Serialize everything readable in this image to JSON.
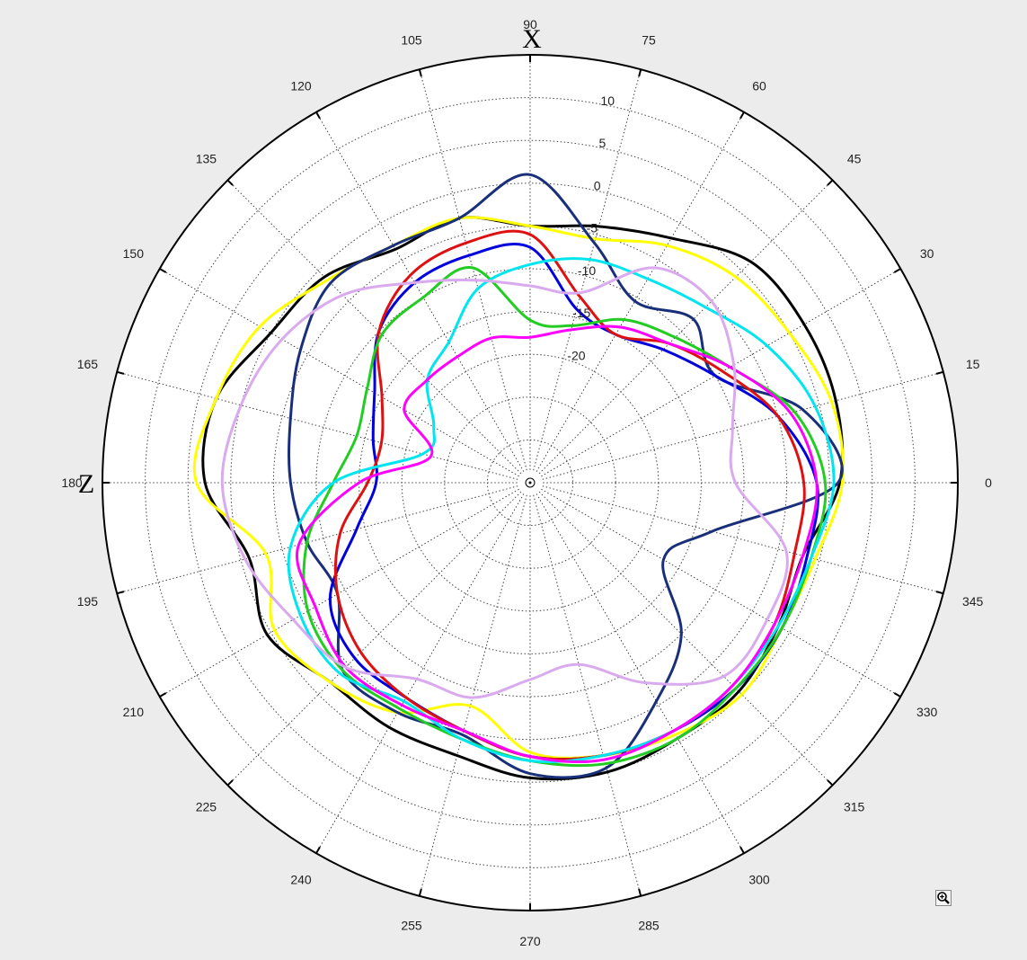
{
  "chart_data": {
    "type": "line",
    "subtype": "polar",
    "background_color": "#ececec",
    "plot_background": "#ffffff",
    "grid": true,
    "grid_style": "dotted",
    "angle_ticks": [
      "0",
      "15",
      "30",
      "45",
      "60",
      "75",
      "90",
      "105",
      "120",
      "135",
      "150",
      "165",
      "180",
      "195",
      "210",
      "225",
      "240",
      "255",
      "270",
      "285",
      "300",
      "315",
      "330",
      "345"
    ],
    "angle_tick_values": [
      0,
      15,
      30,
      45,
      60,
      75,
      90,
      105,
      120,
      135,
      150,
      165,
      180,
      195,
      210,
      225,
      240,
      255,
      270,
      285,
      300,
      315,
      330,
      345
    ],
    "angle_unit": "degrees",
    "radial_ticks": [
      "10",
      "5",
      "0",
      "-5",
      "-10",
      "-15",
      "-20"
    ],
    "radial_tick_values": [
      10,
      5,
      0,
      -5,
      -10,
      -15,
      -20
    ],
    "radial_range": [
      -35,
      15
    ],
    "axis_labels": {
      "at_90": "X",
      "at_180": "Z"
    },
    "series": [
      {
        "color": "#000000",
        "points": [
          [
            0,
            1.2
          ],
          [
            15,
            2.0
          ],
          [
            30,
            2.0
          ],
          [
            45,
            1.5
          ],
          [
            60,
            -2.0
          ],
          [
            75,
            -4.0
          ],
          [
            90,
            -5.0
          ],
          [
            105,
            -3.0
          ],
          [
            120,
            -3.5
          ],
          [
            135,
            -1.0
          ],
          [
            150,
            0.0
          ],
          [
            165,
            3.0
          ],
          [
            180,
            3.0
          ],
          [
            195,
            -1.0
          ],
          [
            210,
            0.5
          ],
          [
            225,
            -2.0
          ],
          [
            240,
            -2.0
          ],
          [
            255,
            -2.0
          ],
          [
            270,
            -0.5
          ],
          [
            285,
            0.0
          ],
          [
            300,
            -0.5
          ],
          [
            315,
            -0.5
          ],
          [
            330,
            -1.5
          ],
          [
            345,
            -2.0
          ]
        ]
      },
      {
        "color": "#ffff00",
        "points": [
          [
            0,
            1.5
          ],
          [
            15,
            1.5
          ],
          [
            30,
            0.0
          ],
          [
            45,
            -1.0
          ],
          [
            60,
            -3.0
          ],
          [
            75,
            -5.5
          ],
          [
            90,
            -5.0
          ],
          [
            105,
            -3.0
          ],
          [
            120,
            -3.0
          ],
          [
            135,
            -1.5
          ],
          [
            150,
            1.5
          ],
          [
            165,
            3.0
          ],
          [
            180,
            4.0
          ],
          [
            195,
            -3.0
          ],
          [
            210,
            -0.5
          ],
          [
            225,
            -2.0
          ],
          [
            240,
            -4.0
          ],
          [
            255,
            -8.0
          ],
          [
            270,
            -3.5
          ],
          [
            285,
            -2.0
          ],
          [
            300,
            -1.0
          ],
          [
            315,
            0.0
          ],
          [
            330,
            -1.0
          ],
          [
            345,
            -0.5
          ]
        ]
      },
      {
        "color": "#1a2f7a",
        "points": [
          [
            0,
            1.0
          ],
          [
            15,
            -2.0
          ],
          [
            30,
            -10.0
          ],
          [
            45,
            -8.0
          ],
          [
            60,
            -10.5
          ],
          [
            75,
            -6.0
          ],
          [
            90,
            1.0
          ],
          [
            105,
            -3.0
          ],
          [
            120,
            -3.0
          ],
          [
            135,
            -2.0
          ],
          [
            150,
            -4.0
          ],
          [
            165,
            -6.0
          ],
          [
            180,
            -7.0
          ],
          [
            195,
            -8.0
          ],
          [
            210,
            -9.0
          ],
          [
            225,
            -4.0
          ],
          [
            240,
            -4.0
          ],
          [
            255,
            -4.5
          ],
          [
            270,
            -1.0
          ],
          [
            285,
            -0.5
          ],
          [
            300,
            -5.5
          ],
          [
            315,
            -10.0
          ],
          [
            330,
            -17.0
          ],
          [
            345,
            -13.0
          ]
        ]
      },
      {
        "color": "#0000dd",
        "points": [
          [
            0,
            -1.5
          ],
          [
            15,
            -5.0
          ],
          [
            30,
            -10.0
          ],
          [
            45,
            -13.0
          ],
          [
            60,
            -15.0
          ],
          [
            75,
            -14.0
          ],
          [
            90,
            -7.5
          ],
          [
            105,
            -7.5
          ],
          [
            120,
            -8.0
          ],
          [
            135,
            -10.0
          ],
          [
            150,
            -14.0
          ],
          [
            165,
            -16.0
          ],
          [
            180,
            -17.0
          ],
          [
            195,
            -14.0
          ],
          [
            210,
            -8.0
          ],
          [
            225,
            -6.0
          ],
          [
            240,
            -6.0
          ],
          [
            255,
            -5.0
          ],
          [
            270,
            -3.0
          ],
          [
            285,
            -2.0
          ],
          [
            300,
            -1.5
          ],
          [
            315,
            -1.0
          ],
          [
            330,
            -1.0
          ],
          [
            345,
            -1.5
          ]
        ]
      },
      {
        "color": "#dd1111",
        "points": [
          [
            0,
            -3.0
          ],
          [
            15,
            -5.0
          ],
          [
            30,
            -9.0
          ],
          [
            45,
            -12.0
          ],
          [
            60,
            -15.0
          ],
          [
            75,
            -12.5
          ],
          [
            90,
            -6.0
          ],
          [
            105,
            -6.0
          ],
          [
            120,
            -7.0
          ],
          [
            135,
            -10.0
          ],
          [
            150,
            -15.0
          ],
          [
            165,
            -17.0
          ],
          [
            180,
            -16.0
          ],
          [
            195,
            -12.0
          ],
          [
            210,
            -9.0
          ],
          [
            225,
            -7.0
          ],
          [
            240,
            -6.0
          ],
          [
            255,
            -5.0
          ],
          [
            270,
            -3.0
          ],
          [
            285,
            -2.0
          ],
          [
            300,
            -1.5
          ],
          [
            315,
            -1.5
          ],
          [
            330,
            -2.0
          ],
          [
            345,
            -3.0
          ]
        ]
      },
      {
        "color": "#22cc22",
        "points": [
          [
            0,
            -0.5
          ],
          [
            15,
            -3.0
          ],
          [
            30,
            -8.0
          ],
          [
            45,
            -11.0
          ],
          [
            60,
            -13.0
          ],
          [
            75,
            -16.0
          ],
          [
            90,
            -16.0
          ],
          [
            105,
            -9.0
          ],
          [
            120,
            -10.0
          ],
          [
            135,
            -10.5
          ],
          [
            150,
            -13.0
          ],
          [
            165,
            -14.0
          ],
          [
            180,
            -12.0
          ],
          [
            195,
            -8.0
          ],
          [
            210,
            -5.0
          ],
          [
            225,
            -4.0
          ],
          [
            240,
            -4.5
          ],
          [
            255,
            -4.0
          ],
          [
            270,
            -2.5
          ],
          [
            285,
            -1.0
          ],
          [
            300,
            -0.5
          ],
          [
            315,
            -1.0
          ],
          [
            330,
            -1.0
          ],
          [
            345,
            -1.0
          ]
        ]
      },
      {
        "color": "#00e5ee",
        "points": [
          [
            0,
            0.5
          ],
          [
            15,
            -0.5
          ],
          [
            30,
            -3.0
          ],
          [
            45,
            -6.0
          ],
          [
            60,
            -7.5
          ],
          [
            75,
            -8.0
          ],
          [
            90,
            -9.5
          ],
          [
            105,
            -11.5
          ],
          [
            120,
            -16.0
          ],
          [
            135,
            -18.0
          ],
          [
            150,
            -22.0
          ],
          [
            165,
            -22.0
          ],
          [
            180,
            -12.0
          ],
          [
            195,
            -6.0
          ],
          [
            210,
            -4.0
          ],
          [
            225,
            -3.5
          ],
          [
            240,
            -5.5
          ],
          [
            255,
            -4.0
          ],
          [
            270,
            -2.5
          ],
          [
            285,
            -2.0
          ],
          [
            300,
            -1.5
          ],
          [
            315,
            -1.5
          ],
          [
            330,
            -1.5
          ],
          [
            345,
            -1.0
          ]
        ]
      },
      {
        "color": "#ff00ff",
        "points": [
          [
            0,
            -1.5
          ],
          [
            15,
            -3.5
          ],
          [
            30,
            -8.0
          ],
          [
            45,
            -12.0
          ],
          [
            60,
            -14.0
          ],
          [
            75,
            -16.5
          ],
          [
            90,
            -18.0
          ],
          [
            105,
            -17.5
          ],
          [
            120,
            -18.0
          ],
          [
            135,
            -18.0
          ],
          [
            150,
            -18.0
          ],
          [
            165,
            -23.0
          ],
          [
            180,
            -15.0
          ],
          [
            195,
            -7.0
          ],
          [
            210,
            -6.0
          ],
          [
            225,
            -4.5
          ],
          [
            240,
            -5.0
          ],
          [
            255,
            -5.0
          ],
          [
            270,
            -3.0
          ],
          [
            285,
            -1.5
          ],
          [
            300,
            -1.5
          ],
          [
            315,
            -1.5
          ],
          [
            330,
            -2.0
          ],
          [
            345,
            -2.0
          ]
        ]
      },
      {
        "color": "#d9aaee",
        "points": [
          [
            0,
            -11.0
          ],
          [
            15,
            -10.5
          ],
          [
            30,
            -7.5
          ],
          [
            45,
            -5.0
          ],
          [
            60,
            -6.0
          ],
          [
            75,
            -12.0
          ],
          [
            90,
            -12.0
          ],
          [
            105,
            -10.5
          ],
          [
            120,
            -8.0
          ],
          [
            135,
            -4.0
          ],
          [
            150,
            -1.5
          ],
          [
            165,
            0.0
          ],
          [
            180,
            1.0
          ],
          [
            195,
            -0.5
          ],
          [
            210,
            -3.0
          ],
          [
            225,
            -4.5
          ],
          [
            240,
            -8.5
          ],
          [
            255,
            -9.0
          ],
          [
            270,
            -12.0
          ],
          [
            285,
            -13.0
          ],
          [
            300,
            -8.0
          ],
          [
            315,
            -3.0
          ],
          [
            330,
            -3.0
          ],
          [
            345,
            -4.0
          ]
        ]
      }
    ]
  },
  "toolbar": {
    "zoom_icon": "zoom-in-icon"
  }
}
